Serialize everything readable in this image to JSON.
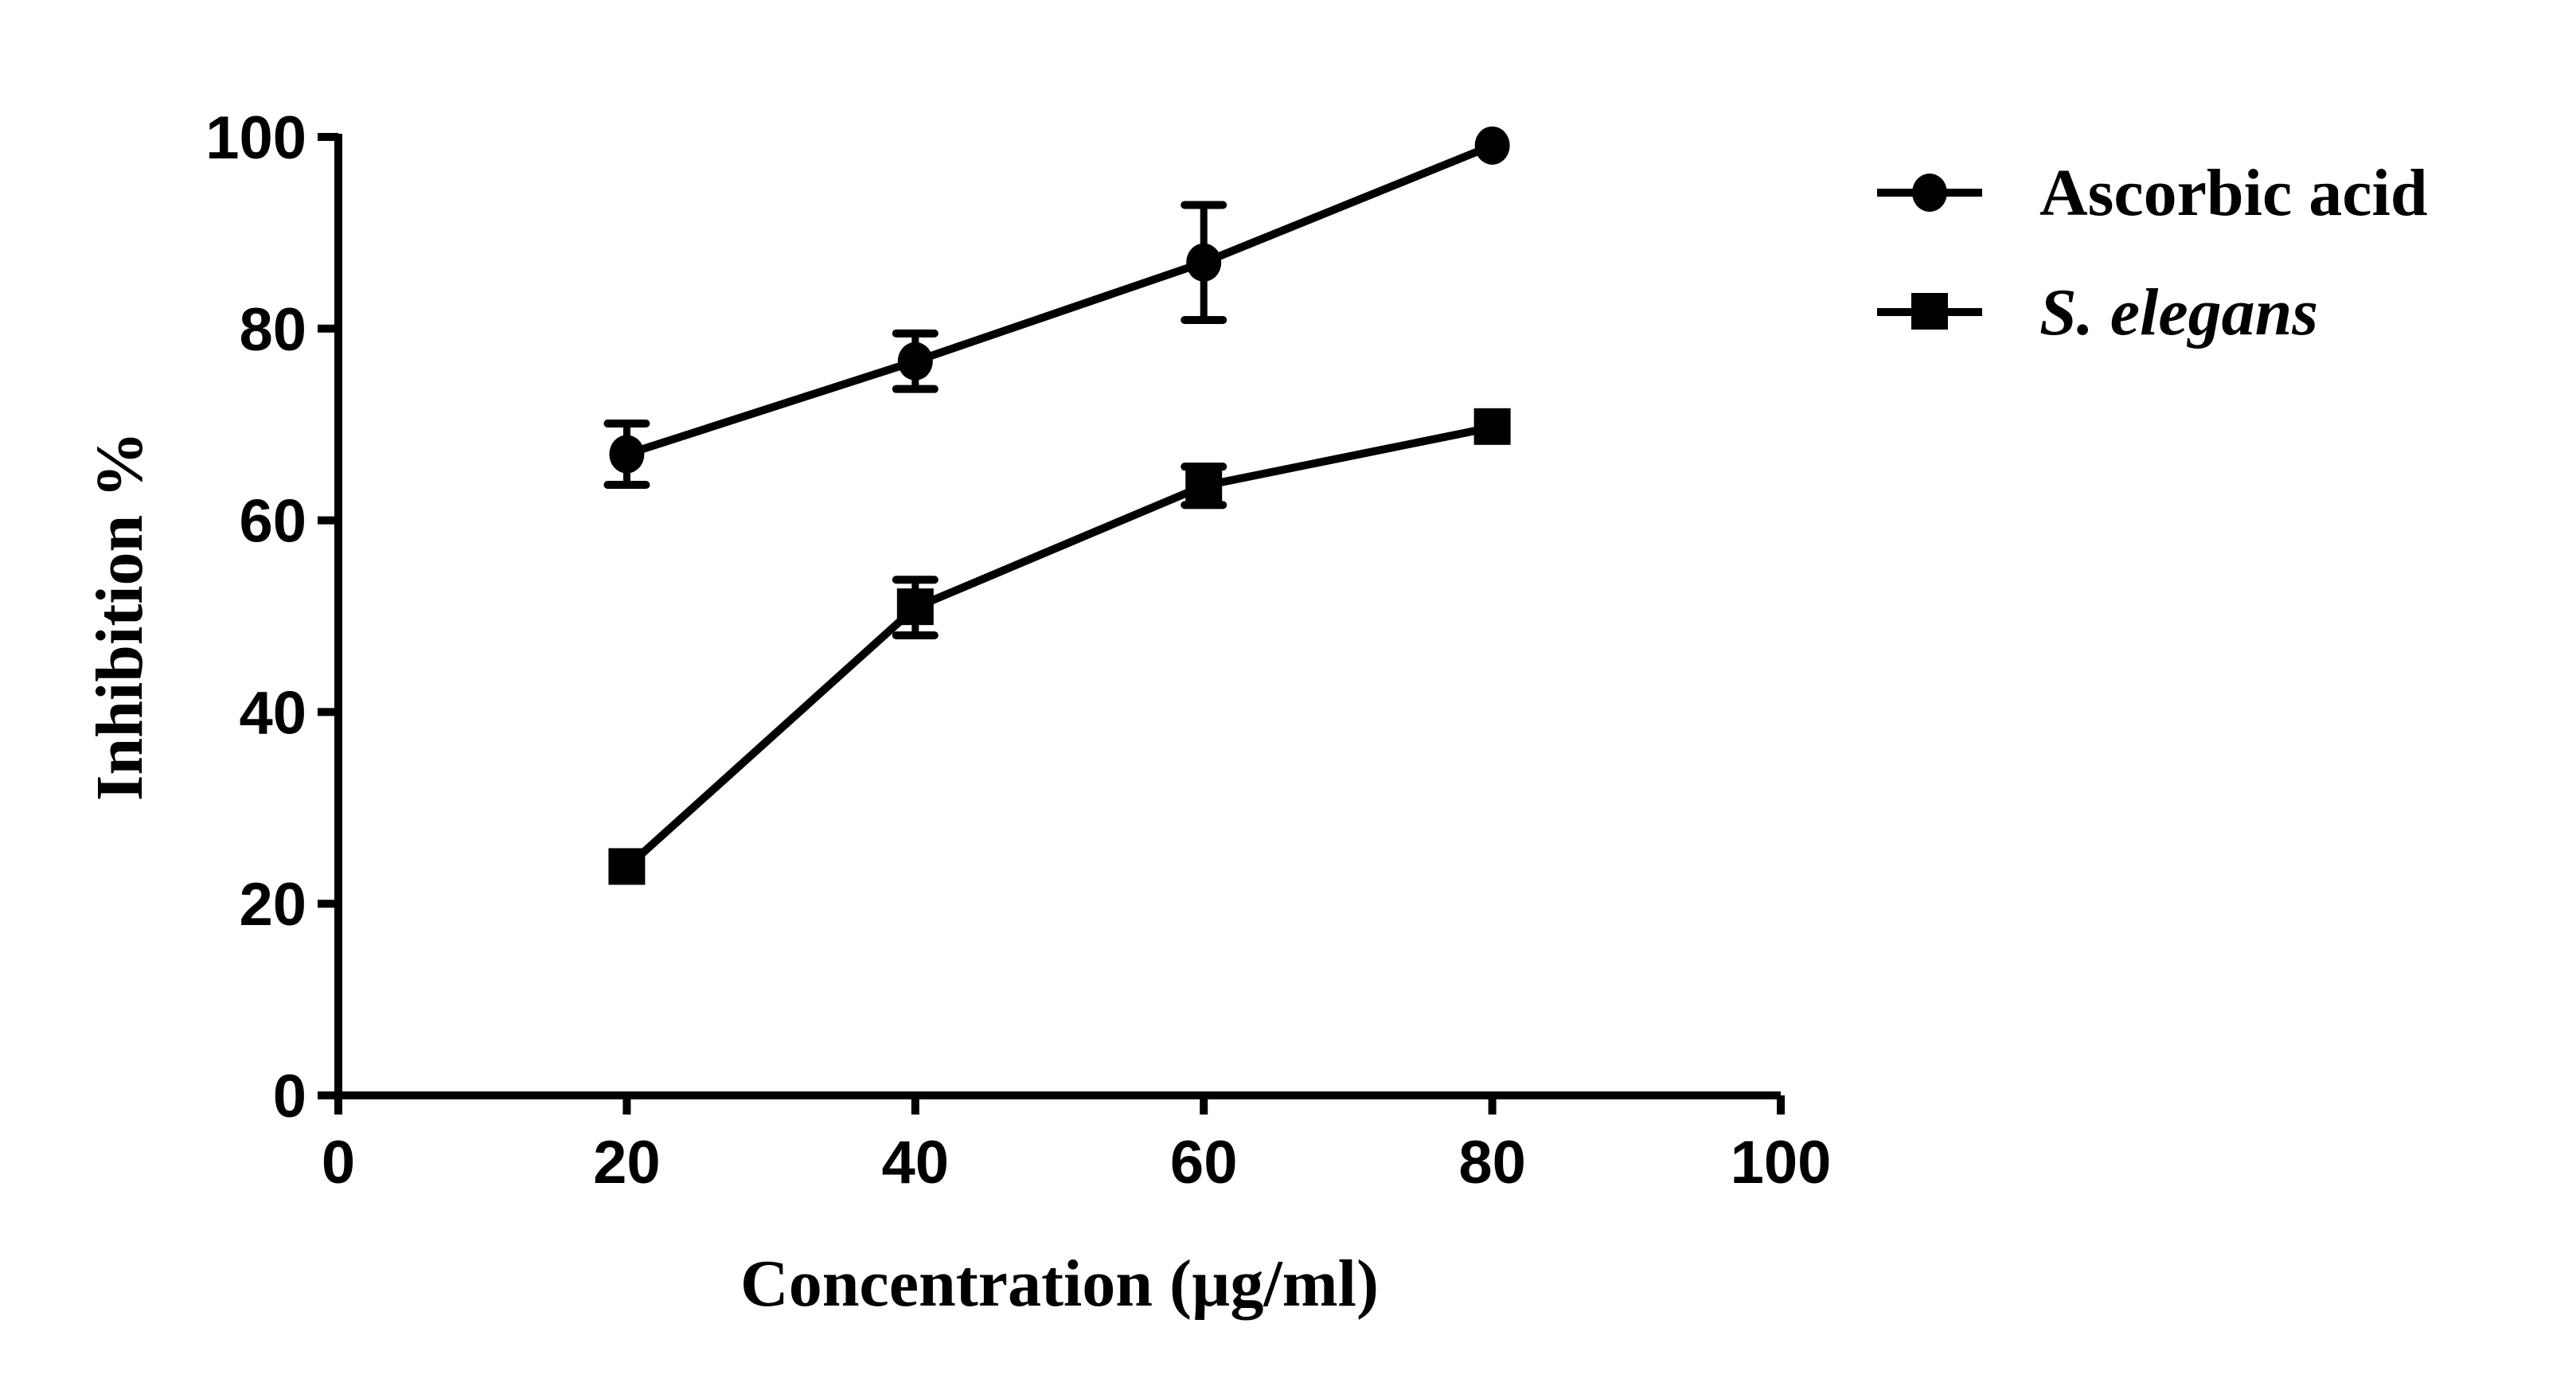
{
  "chart_data": {
    "type": "line",
    "title": "",
    "xlabel": "Concentration (µg/ml)",
    "ylabel": "Inhibition %",
    "xlim": [
      0,
      100
    ],
    "ylim": [
      0,
      100
    ],
    "xticks": [
      "0",
      "20",
      "40",
      "60",
      "80",
      "100"
    ],
    "yticks": [
      "0",
      "20",
      "40",
      "60",
      "80",
      "100"
    ],
    "grid": false,
    "legend_position": "top-right outside",
    "x": [
      20,
      40,
      60,
      80
    ],
    "series": [
      {
        "name": "Ascorbic acid",
        "marker": "circle",
        "italic": false,
        "values": [
          66.9,
          76.6,
          86.9,
          99.1
        ],
        "errors": [
          3.2,
          2.9,
          6.0,
          0
        ]
      },
      {
        "name": "S. elegans",
        "marker": "square",
        "italic": true,
        "values": [
          23.8,
          50.9,
          63.6,
          69.7
        ],
        "errors": [
          0,
          2.9,
          2.0,
          0
        ]
      }
    ],
    "color": "#000000"
  }
}
